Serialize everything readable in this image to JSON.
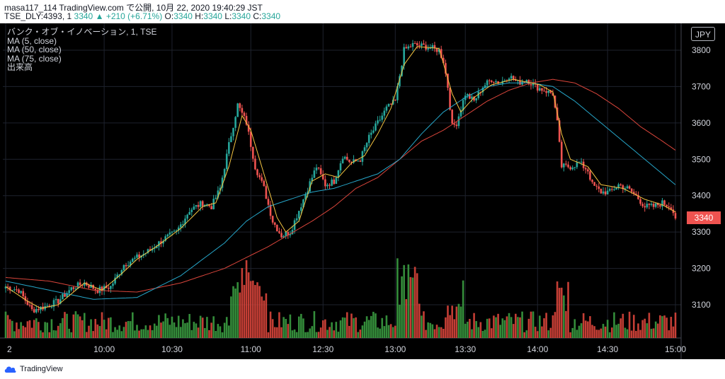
{
  "header": {
    "line1": "masa117_114 TradingView.com で公開, 10月 22, 2020 19:40:29 JST",
    "symbol": "TSE_DLY:4393, 1",
    "last": "3340",
    "change": "+210 (+6.71%)",
    "o_label": "O:",
    "o": "3340",
    "h_label": "H:",
    "h": "3340",
    "l_label": "L:",
    "l": "3340",
    "c_label": "C:",
    "c": "3340"
  },
  "legend": {
    "title": "バンク・オブ・イノベーション, 1, TSE",
    "ma5": "MA (5, close)",
    "ma50": "MA (50, close)",
    "ma75": "MA (75, close)",
    "volume": "出来高"
  },
  "currency": "JPY",
  "footer": {
    "brand": "TradingView"
  },
  "colors": {
    "up": "#26a69a",
    "down": "#ef5350",
    "ma5": "#f5c542",
    "ma50": "#26a6c9",
    "ma75": "#d9453b",
    "volUp": "#3a9b40",
    "volDown": "#d9453b"
  },
  "chart_data": {
    "type": "candlestick",
    "y_ticks": [
      3100,
      3200,
      3300,
      3400,
      3500,
      3600,
      3700,
      3800
    ],
    "ylim": [
      3000,
      3850
    ],
    "x_ticks": [
      "2",
      "10:00",
      "10:30",
      "11:00",
      "12:30",
      "13:00",
      "13:30",
      "14:00",
      "14:30",
      "15:00"
    ],
    "current_price": 3340,
    "keypoints_close": [
      [
        0,
        3150
      ],
      [
        6,
        3140
      ],
      [
        12,
        3085
      ],
      [
        18,
        3095
      ],
      [
        24,
        3110
      ],
      [
        30,
        3145
      ],
      [
        36,
        3160
      ],
      [
        42,
        3140
      ],
      [
        48,
        3150
      ],
      [
        54,
        3210
      ],
      [
        60,
        3230
      ],
      [
        66,
        3250
      ],
      [
        72,
        3280
      ],
      [
        78,
        3300
      ],
      [
        84,
        3360
      ],
      [
        90,
        3380
      ],
      [
        94,
        3370
      ],
      [
        98,
        3420
      ],
      [
        102,
        3540
      ],
      [
        106,
        3650
      ],
      [
        110,
        3600
      ],
      [
        114,
        3480
      ],
      [
        118,
        3420
      ],
      [
        122,
        3330
      ],
      [
        126,
        3290
      ],
      [
        130,
        3300
      ],
      [
        134,
        3360
      ],
      [
        138,
        3420
      ],
      [
        142,
        3480
      ],
      [
        146,
        3430
      ],
      [
        150,
        3440
      ],
      [
        154,
        3510
      ],
      [
        158,
        3490
      ],
      [
        162,
        3500
      ],
      [
        166,
        3560
      ],
      [
        170,
        3600
      ],
      [
        174,
        3640
      ],
      [
        178,
        3660
      ],
      [
        182,
        3800
      ],
      [
        186,
        3815
      ],
      [
        192,
        3810
      ],
      [
        198,
        3800
      ],
      [
        200,
        3770
      ],
      [
        202,
        3700
      ],
      [
        204,
        3590
      ],
      [
        206,
        3600
      ],
      [
        210,
        3680
      ],
      [
        214,
        3660
      ],
      [
        218,
        3700
      ],
      [
        222,
        3720
      ],
      [
        226,
        3710
      ],
      [
        230,
        3730
      ],
      [
        234,
        3710
      ],
      [
        238,
        3720
      ],
      [
        242,
        3700
      ],
      [
        246,
        3690
      ],
      [
        250,
        3680
      ],
      [
        252,
        3600
      ],
      [
        254,
        3480
      ],
      [
        258,
        3480
      ],
      [
        262,
        3490
      ],
      [
        266,
        3470
      ],
      [
        268,
        3430
      ],
      [
        272,
        3410
      ],
      [
        276,
        3410
      ],
      [
        280,
        3430
      ],
      [
        284,
        3420
      ],
      [
        288,
        3400
      ],
      [
        292,
        3370
      ],
      [
        296,
        3370
      ],
      [
        300,
        3380
      ],
      [
        304,
        3370
      ],
      [
        306,
        3340
      ]
    ],
    "n_bars": 307,
    "ma5_keypoints": [
      [
        0,
        3150
      ],
      [
        10,
        3110
      ],
      [
        16,
        3090
      ],
      [
        24,
        3100
      ],
      [
        30,
        3130
      ],
      [
        36,
        3160
      ],
      [
        44,
        3140
      ],
      [
        52,
        3180
      ],
      [
        60,
        3225
      ],
      [
        70,
        3265
      ],
      [
        80,
        3310
      ],
      [
        90,
        3370
      ],
      [
        96,
        3380
      ],
      [
        102,
        3480
      ],
      [
        108,
        3620
      ],
      [
        112,
        3580
      ],
      [
        118,
        3460
      ],
      [
        124,
        3340
      ],
      [
        128,
        3300
      ],
      [
        134,
        3330
      ],
      [
        140,
        3440
      ],
      [
        146,
        3460
      ],
      [
        152,
        3450
      ],
      [
        158,
        3490
      ],
      [
        164,
        3510
      ],
      [
        170,
        3570
      ],
      [
        176,
        3640
      ],
      [
        182,
        3760
      ],
      [
        188,
        3810
      ],
      [
        198,
        3805
      ],
      [
        204,
        3680
      ],
      [
        208,
        3630
      ],
      [
        214,
        3670
      ],
      [
        222,
        3705
      ],
      [
        232,
        3720
      ],
      [
        244,
        3705
      ],
      [
        250,
        3685
      ],
      [
        254,
        3570
      ],
      [
        258,
        3500
      ],
      [
        266,
        3480
      ],
      [
        272,
        3430
      ],
      [
        282,
        3420
      ],
      [
        292,
        3390
      ],
      [
        300,
        3375
      ],
      [
        306,
        3355
      ]
    ],
    "ma50_keypoints": [
      [
        0,
        3165
      ],
      [
        20,
        3140
      ],
      [
        40,
        3115
      ],
      [
        60,
        3120
      ],
      [
        80,
        3180
      ],
      [
        100,
        3270
      ],
      [
        110,
        3330
      ],
      [
        120,
        3370
      ],
      [
        130,
        3390
      ],
      [
        140,
        3410
      ],
      [
        150,
        3420
      ],
      [
        160,
        3440
      ],
      [
        170,
        3460
      ],
      [
        180,
        3500
      ],
      [
        190,
        3570
      ],
      [
        200,
        3630
      ],
      [
        210,
        3670
      ],
      [
        220,
        3700
      ],
      [
        230,
        3710
      ],
      [
        240,
        3710
      ],
      [
        250,
        3700
      ],
      [
        260,
        3660
      ],
      [
        270,
        3610
      ],
      [
        280,
        3560
      ],
      [
        290,
        3510
      ],
      [
        300,
        3460
      ],
      [
        306,
        3430
      ]
    ],
    "ma75_keypoints": [
      [
        0,
        3175
      ],
      [
        20,
        3165
      ],
      [
        40,
        3140
      ],
      [
        60,
        3135
      ],
      [
        80,
        3160
      ],
      [
        100,
        3200
      ],
      [
        120,
        3260
      ],
      [
        140,
        3330
      ],
      [
        150,
        3370
      ],
      [
        160,
        3420
      ],
      [
        170,
        3450
      ],
      [
        180,
        3500
      ],
      [
        190,
        3550
      ],
      [
        200,
        3580
      ],
      [
        210,
        3620
      ],
      [
        220,
        3660
      ],
      [
        230,
        3690
      ],
      [
        240,
        3710
      ],
      [
        250,
        3720
      ],
      [
        260,
        3710
      ],
      [
        270,
        3680
      ],
      [
        280,
        3640
      ],
      [
        290,
        3590
      ],
      [
        300,
        3550
      ],
      [
        306,
        3525
      ]
    ]
  }
}
